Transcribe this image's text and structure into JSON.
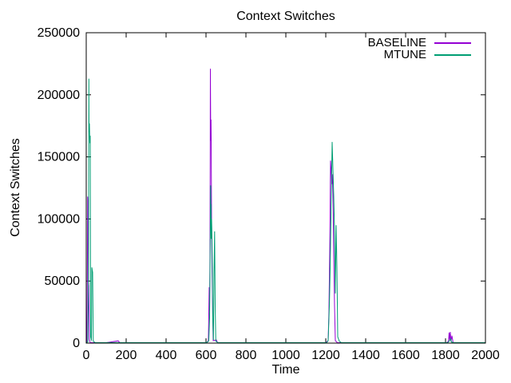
{
  "figure": {
    "background": "#ffffff",
    "axis_color": "#000000"
  },
  "chart_data": {
    "type": "line",
    "title": "Context Switches",
    "xlabel": "Time",
    "ylabel": "Context Switches",
    "xlim": [
      0,
      2000
    ],
    "ylim": [
      0,
      250000
    ],
    "grid": false,
    "legend_position": "top-right-inside",
    "xticks": [
      {
        "v": 0,
        "label": "0"
      },
      {
        "v": 200,
        "label": "200"
      },
      {
        "v": 400,
        "label": "400"
      },
      {
        "v": 600,
        "label": "600"
      },
      {
        "v": 800,
        "label": "800"
      },
      {
        "v": 1000,
        "label": "1000"
      },
      {
        "v": 1200,
        "label": "1200"
      },
      {
        "v": 1400,
        "label": "1400"
      },
      {
        "v": 1600,
        "label": "1600"
      },
      {
        "v": 1800,
        "label": "1800"
      },
      {
        "v": 2000,
        "label": "2000"
      }
    ],
    "yticks": [
      {
        "v": 0,
        "label": "0"
      },
      {
        "v": 50000,
        "label": "50000"
      },
      {
        "v": 100000,
        "label": "100000"
      },
      {
        "v": 150000,
        "label": "150000"
      },
      {
        "v": 200000,
        "label": "200000"
      },
      {
        "v": 250000,
        "label": "250000"
      }
    ],
    "series": [
      {
        "name": "BASELINE",
        "color": "#9400d3",
        "points": [
          [
            0,
            300
          ],
          [
            3,
            500
          ],
          [
            5,
            40000
          ],
          [
            7,
            118000
          ],
          [
            9,
            110000
          ],
          [
            11,
            50000
          ],
          [
            13,
            46000
          ],
          [
            15,
            3000
          ],
          [
            20,
            400
          ],
          [
            100,
            300
          ],
          [
            160,
            1800
          ],
          [
            168,
            300
          ],
          [
            595,
            300
          ],
          [
            605,
            500
          ],
          [
            612,
            2000
          ],
          [
            616,
            45000
          ],
          [
            618,
            26000
          ],
          [
            620,
            70000
          ],
          [
            622,
            221000
          ],
          [
            623,
            182000
          ],
          [
            624,
            163000
          ],
          [
            625,
            180000
          ],
          [
            626,
            165000
          ],
          [
            628,
            96000
          ],
          [
            630,
            60000
          ],
          [
            633,
            28000
          ],
          [
            636,
            2000
          ],
          [
            652,
            2500
          ],
          [
            658,
            300
          ],
          [
            1200,
            300
          ],
          [
            1212,
            2000
          ],
          [
            1216,
            26000
          ],
          [
            1220,
            75000
          ],
          [
            1224,
            147000
          ],
          [
            1227,
            138000
          ],
          [
            1230,
            128000
          ],
          [
            1233,
            136000
          ],
          [
            1236,
            120000
          ],
          [
            1240,
            70000
          ],
          [
            1244,
            30000
          ],
          [
            1248,
            2000
          ],
          [
            1258,
            300
          ],
          [
            1805,
            300
          ],
          [
            1815,
            1500
          ],
          [
            1818,
            8500
          ],
          [
            1821,
            2500
          ],
          [
            1824,
            9000
          ],
          [
            1827,
            1200
          ],
          [
            1832,
            6000
          ],
          [
            1838,
            300
          ],
          [
            2000,
            300
          ]
        ]
      },
      {
        "name": "MTUNE",
        "color": "#009e73",
        "points": [
          [
            0,
            400
          ],
          [
            8,
            1000
          ],
          [
            11,
            45000
          ],
          [
            13,
            213000
          ],
          [
            14,
            170000
          ],
          [
            16,
            177000
          ],
          [
            18,
            161000
          ],
          [
            20,
            167000
          ],
          [
            22,
            5000
          ],
          [
            26,
            2000
          ],
          [
            28,
            61000
          ],
          [
            32,
            57000
          ],
          [
            35,
            1500
          ],
          [
            45,
            400
          ],
          [
            600,
            400
          ],
          [
            610,
            1000
          ],
          [
            614,
            2000
          ],
          [
            618,
            20000
          ],
          [
            621,
            80000
          ],
          [
            623,
            127000
          ],
          [
            624,
            105000
          ],
          [
            625,
            112000
          ],
          [
            626,
            84000
          ],
          [
            628,
            100000
          ],
          [
            630,
            86000
          ],
          [
            634,
            20000
          ],
          [
            637,
            2500
          ],
          [
            640,
            55000
          ],
          [
            643,
            90000
          ],
          [
            646,
            30000
          ],
          [
            649,
            1500
          ],
          [
            660,
            400
          ],
          [
            1205,
            400
          ],
          [
            1212,
            2000
          ],
          [
            1218,
            30000
          ],
          [
            1222,
            60000
          ],
          [
            1228,
            120000
          ],
          [
            1232,
            162000
          ],
          [
            1236,
            140000
          ],
          [
            1240,
            118000
          ],
          [
            1244,
            90000
          ],
          [
            1248,
            40000
          ],
          [
            1252,
            95000
          ],
          [
            1256,
            60000
          ],
          [
            1260,
            5000
          ],
          [
            1268,
            1500
          ],
          [
            1278,
            400
          ],
          [
            1812,
            400
          ],
          [
            1820,
            2000
          ],
          [
            1825,
            3500
          ],
          [
            1830,
            800
          ],
          [
            1842,
            400
          ],
          [
            2000,
            400
          ]
        ]
      }
    ]
  }
}
